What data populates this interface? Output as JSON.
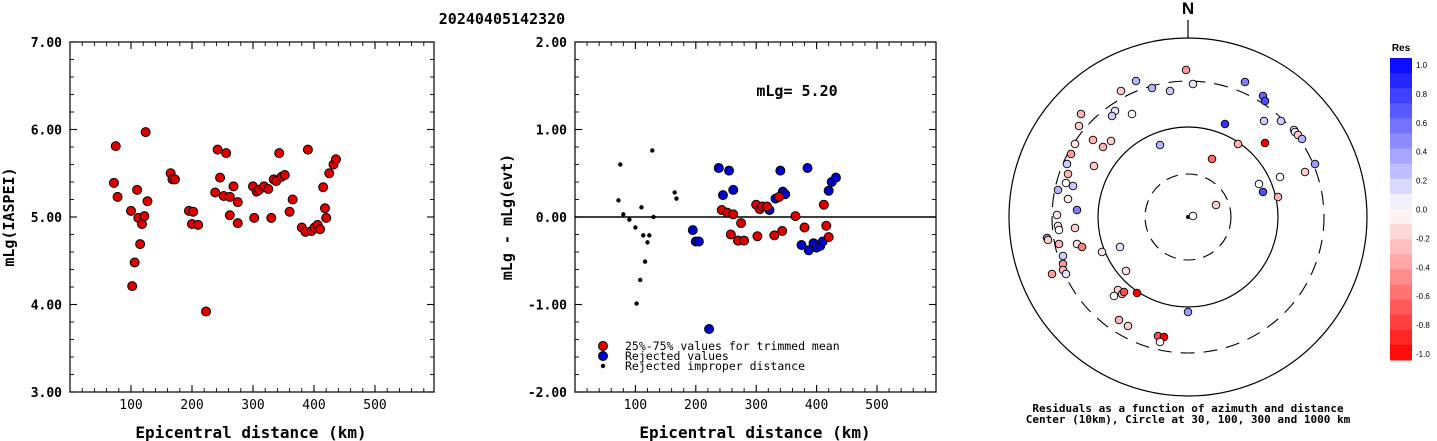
{
  "title": "20240405142320",
  "left_plot": {
    "ylabel": "mLg(IASPEI)",
    "xlabel": "Epicentral distance (km)",
    "yticks": [
      "7.00",
      "6.00",
      "5.00",
      "4.00",
      "3.00"
    ],
    "xticks": [
      "100",
      "200",
      "300",
      "400",
      "500"
    ]
  },
  "mid_plot": {
    "ylabel": "mLg - mLg(evt)",
    "xlabel": "Epicentral distance (km)",
    "yticks": [
      "2.00",
      "1.00",
      "0.00",
      "-1.00",
      "-2.00"
    ],
    "xticks": [
      "100",
      "200",
      "300",
      "400",
      "500"
    ],
    "annotation": "mLg= 5.20",
    "legend": [
      "25%-75% values for trimmed mean",
      "Rejected values",
      "Rejected improper distance"
    ]
  },
  "polar_plot": {
    "north_label": "N",
    "caption_line1": "Residuals as a function of azimuth and distance",
    "caption_line2": "Center (10km), Circle at 30, 100, 300 and 1000 km"
  },
  "colorbar": {
    "title": "Res",
    "ticks": [
      "1.0",
      "0.8",
      "0.6",
      "0.4",
      "0.2",
      "0.0",
      "-0.2",
      "-0.4",
      "-0.6",
      "-0.8",
      "-1.0"
    ]
  },
  "colors": {
    "trimmed": "#dd0000",
    "rejected": "#0000cc",
    "improper": "#000000"
  },
  "chart_data": [
    {
      "type": "scatter",
      "name": "mLg(IASPEI) vs distance",
      "xlim": [
        0,
        600
      ],
      "ylim": [
        3,
        7
      ],
      "points": [
        [
          72,
          5.39
        ],
        [
          75,
          5.81
        ],
        [
          78,
          5.23
        ],
        [
          100,
          5.07
        ],
        [
          102,
          4.21
        ],
        [
          106,
          4.48
        ],
        [
          110,
          5.31
        ],
        [
          112,
          4.99
        ],
        [
          115,
          4.69
        ],
        [
          118,
          4.92
        ],
        [
          122,
          5.01
        ],
        [
          124,
          5.97
        ],
        [
          127,
          5.18
        ],
        [
          165,
          5.5
        ],
        [
          168,
          5.43
        ],
        [
          172,
          5.43
        ],
        [
          195,
          5.07
        ],
        [
          200,
          4.92
        ],
        [
          202,
          5.06
        ],
        [
          210,
          4.91
        ],
        [
          223,
          3.92
        ],
        [
          238,
          5.28
        ],
        [
          242,
          5.77
        ],
        [
          246,
          5.45
        ],
        [
          252,
          5.24
        ],
        [
          256,
          5.73
        ],
        [
          262,
          5.23
        ],
        [
          262,
          5.02
        ],
        [
          268,
          5.35
        ],
        [
          275,
          5.17
        ],
        [
          275,
          4.93
        ],
        [
          300,
          5.35
        ],
        [
          302,
          4.99
        ],
        [
          306,
          5.29
        ],
        [
          310,
          5.31
        ],
        [
          318,
          5.35
        ],
        [
          325,
          5.32
        ],
        [
          330,
          4.99
        ],
        [
          334,
          5.43
        ],
        [
          338,
          5.41
        ],
        [
          343,
          5.73
        ],
        [
          347,
          5.46
        ],
        [
          352,
          5.48
        ],
        [
          360,
          5.06
        ],
        [
          365,
          5.2
        ],
        [
          380,
          4.88
        ],
        [
          386,
          4.83
        ],
        [
          390,
          5.77
        ],
        [
          396,
          4.84
        ],
        [
          401,
          4.88
        ],
        [
          406,
          4.91
        ],
        [
          410,
          4.86
        ],
        [
          415,
          5.34
        ],
        [
          418,
          5.1
        ],
        [
          420,
          4.99
        ],
        [
          425,
          5.5
        ],
        [
          432,
          5.6
        ],
        [
          436,
          5.66
        ]
      ]
    },
    {
      "type": "scatter",
      "name": "mLg - mLg(evt) vs distance",
      "xlim": [
        0,
        600
      ],
      "ylim": [
        -2,
        2
      ],
      "trimmed": [
        [
          243,
          0.08
        ],
        [
          252,
          0.05
        ],
        [
          258,
          -0.2
        ],
        [
          262,
          0.03
        ],
        [
          270,
          -0.27
        ],
        [
          275,
          -0.07
        ],
        [
          280,
          -0.27
        ],
        [
          300,
          0.14
        ],
        [
          302,
          -0.22
        ],
        [
          306,
          0.09
        ],
        [
          310,
          0.12
        ],
        [
          318,
          0.12
        ],
        [
          330,
          -0.21
        ],
        [
          338,
          0.23
        ],
        [
          343,
          -0.16
        ],
        [
          365,
          0.01
        ],
        [
          380,
          -0.12
        ],
        [
          412,
          0.14
        ],
        [
          416,
          -0.1
        ],
        [
          420,
          -0.23
        ]
      ],
      "rejected": [
        [
          195,
          -0.15
        ],
        [
          200,
          -0.28
        ],
        [
          205,
          -0.28
        ],
        [
          222,
          -1.28
        ],
        [
          238,
          0.56
        ],
        [
          245,
          0.25
        ],
        [
          255,
          0.53
        ],
        [
          262,
          0.31
        ],
        [
          270,
          -0.27
        ],
        [
          322,
          0.08
        ],
        [
          332,
          0.21
        ],
        [
          340,
          0.53
        ],
        [
          344,
          0.29
        ],
        [
          348,
          0.26
        ],
        [
          375,
          -0.32
        ],
        [
          385,
          0.56
        ],
        [
          387,
          -0.38
        ],
        [
          395,
          -0.3
        ],
        [
          400,
          -0.35
        ],
        [
          406,
          -0.33
        ],
        [
          410,
          -0.28
        ],
        [
          420,
          0.3
        ],
        [
          425,
          0.4
        ],
        [
          432,
          0.45
        ]
      ],
      "improper": [
        [
          72,
          0.19
        ],
        [
          75,
          0.6
        ],
        [
          80,
          0.03
        ],
        [
          90,
          -0.03
        ],
        [
          100,
          -0.12
        ],
        [
          102,
          -0.99
        ],
        [
          108,
          -0.72
        ],
        [
          110,
          0.11
        ],
        [
          113,
          -0.21
        ],
        [
          116,
          -0.51
        ],
        [
          120,
          -0.29
        ],
        [
          123,
          -0.21
        ],
        [
          128,
          0.76
        ],
        [
          130,
          0.0
        ],
        [
          165,
          0.28
        ],
        [
          168,
          0.21
        ]
      ]
    },
    {
      "type": "scatter",
      "name": "Residuals by azimuth and distance (plot units)",
      "points": [
        [
          1186,
          70,
          -0.4
        ],
        [
          1245,
          82,
          0.5
        ],
        [
          1263,
          96,
          0.6
        ],
        [
          1265,
          101,
          0.7
        ],
        [
          1193,
          84,
          0.1
        ],
        [
          1170,
          91,
          0.2
        ],
        [
          1152,
          88,
          0.3
        ],
        [
          1136,
          81,
          0.3
        ],
        [
          1121,
          91,
          -0.2
        ],
        [
          1132,
          114,
          0.0
        ],
        [
          1115,
          111,
          0.1
        ],
        [
          1112,
          116,
          0.2
        ],
        [
          1081,
          114,
          -0.3
        ],
        [
          1079,
          126,
          -0.2
        ],
        [
          1075,
          144,
          -0.1
        ],
        [
          1071,
          154,
          -0.4
        ],
        [
          1067,
          164,
          0.2
        ],
        [
          1068,
          174,
          -0.3
        ],
        [
          1066,
          183,
          0.0
        ],
        [
          1058,
          190,
          0.3
        ],
        [
          1057,
          215,
          -0.1
        ],
        [
          1058,
          226,
          -0.1
        ],
        [
          1059,
          230,
          0.0
        ],
        [
          1068,
          199,
          -0.1
        ],
        [
          1073,
          186,
          0.2
        ],
        [
          1077,
          210,
          0.5
        ],
        [
          1075,
          228,
          -0.2
        ],
        [
          1077,
          244,
          -0.1
        ],
        [
          1082,
          247,
          -0.5
        ],
        [
          1063,
          256,
          0.2
        ],
        [
          1063,
          264,
          -0.4
        ],
        [
          1063,
          270,
          -0.3
        ],
        [
          1066,
          274,
          0.1
        ],
        [
          1047,
          238,
          0.4
        ],
        [
          1048,
          240,
          -0.2
        ],
        [
          1059,
          244,
          -0.3
        ],
        [
          1052,
          274,
          -0.4
        ],
        [
          1103,
          147,
          -0.3
        ],
        [
          1094,
          166,
          -0.2
        ],
        [
          1102,
          252,
          -0.1
        ],
        [
          1093,
          140,
          -0.3
        ],
        [
          1111,
          141,
          -0.2
        ],
        [
          1120,
          247,
          0.1
        ],
        [
          1126,
          271,
          -0.1
        ],
        [
          1118,
          290,
          -0.2
        ],
        [
          1114,
          296,
          0.0
        ],
        [
          1122,
          294,
          -0.3
        ],
        [
          1124,
          292,
          -0.7
        ],
        [
          1137,
          293,
          -1.0
        ],
        [
          1119,
          320,
          -0.3
        ],
        [
          1128,
          326,
          -0.2
        ],
        [
          1158,
          336,
          -0.7
        ],
        [
          1164,
          337,
          -1.0
        ],
        [
          1160,
          342,
          0.0
        ],
        [
          1188,
          312,
          0.4
        ],
        [
          1212,
          159,
          -0.6
        ],
        [
          1225,
          124,
          0.8
        ],
        [
          1238,
          144,
          -0.3
        ],
        [
          1264,
          121,
          0.2
        ],
        [
          1281,
          121,
          0.2
        ],
        [
          1294,
          130,
          0.1
        ],
        [
          1295,
          132,
          0.1
        ],
        [
          1298,
          135,
          -0.2
        ],
        [
          1302,
          139,
          0.3
        ],
        [
          1265,
          143,
          -1.0
        ],
        [
          1216,
          205,
          -0.2
        ],
        [
          1259,
          184,
          0.0
        ],
        [
          1263,
          192,
          0.7
        ],
        [
          1278,
          197,
          -0.3
        ],
        [
          1280,
          177,
          0.0
        ],
        [
          1305,
          172,
          -0.2
        ],
        [
          1315,
          164,
          0.4
        ],
        [
          1160,
          145,
          0.3
        ],
        [
          1193,
          216,
          0.0
        ]
      ]
    }
  ]
}
